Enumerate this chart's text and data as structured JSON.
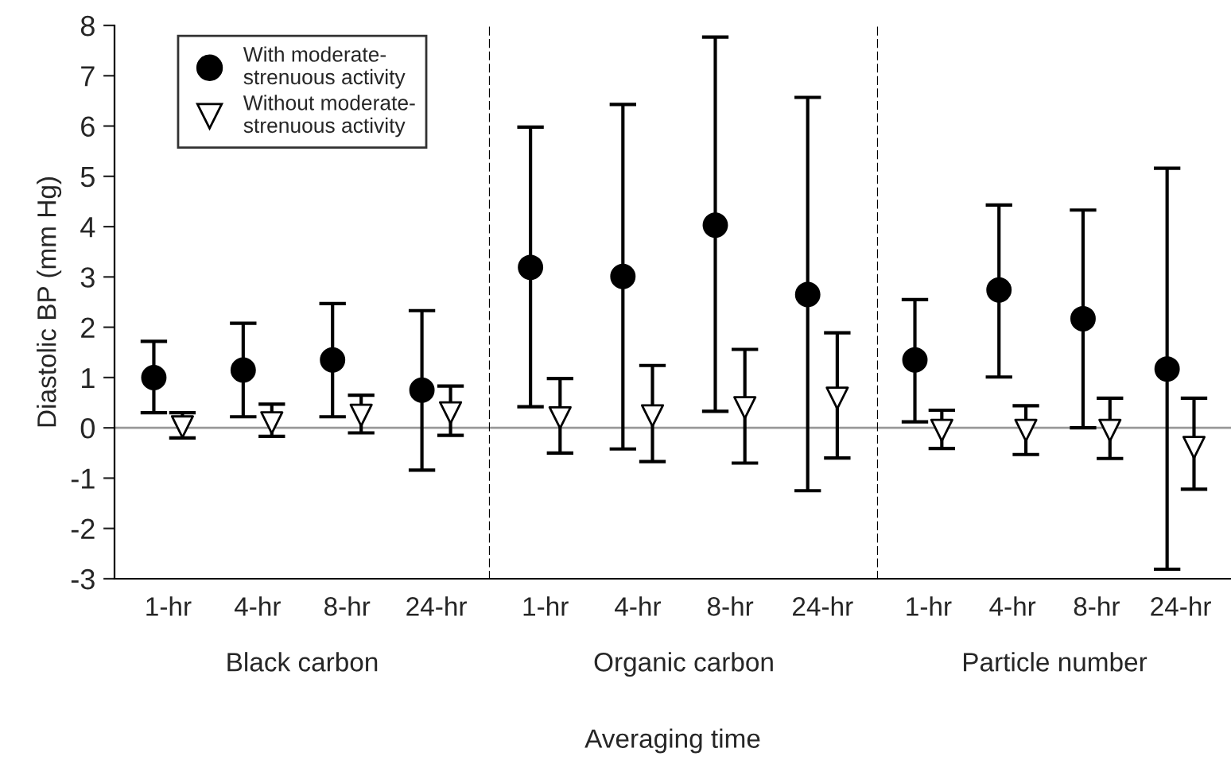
{
  "chart_data": [
    {
      "type": "scatter",
      "categories": [
        "1-hr",
        "4-hr",
        "8-hr",
        "24-hr"
      ],
      "xlabel": "Black carbon",
      "ylabel": "Diastolic BP (mm Hg)",
      "ylim": [
        -3,
        8
      ],
      "yticks": [
        -3,
        -2,
        -1,
        0,
        1,
        2,
        3,
        4,
        5,
        6,
        7,
        8
      ],
      "legend": "top",
      "annotations": [
        "Averaging time"
      ],
      "ref_lines": [
        {
          "axis": "y",
          "value": 0,
          "color": "#999999"
        }
      ],
      "series": [
        {
          "name": "With moderate-strenuous activity",
          "color": "#000000",
          "marker": "circle",
          "values": [
            1.0,
            1.15,
            1.35,
            0.75
          ],
          "errors": [
            [
              0.3,
              1.72
            ],
            [
              0.22,
              2.08
            ],
            [
              0.22,
              2.47
            ],
            [
              -0.84,
              2.33
            ]
          ]
        },
        {
          "name": "Without moderate-strenuous activity",
          "color": "#ffffff",
          "marker": "triangle",
          "values": [
            0.02,
            0.1,
            0.25,
            0.3
          ],
          "errors": [
            [
              -0.2,
              0.3
            ],
            [
              -0.17,
              0.47
            ],
            [
              -0.1,
              0.65
            ],
            [
              -0.15,
              0.83
            ]
          ]
        }
      ]
    },
    {
      "type": "scatter",
      "categories": [
        "1-hr",
        "4-hr",
        "8-hr",
        "24-hr"
      ],
      "xlabel": "Organic carbon",
      "ylim": [
        -3,
        8
      ],
      "tick_labels": "x",
      "ref_lines": [
        {
          "axis": "y",
          "value": 0,
          "color": "#999999"
        }
      ],
      "series": [
        {
          "color": "#000000",
          "marker": "circle",
          "values": [
            3.19,
            3.01,
            4.03,
            2.65
          ],
          "errors": [
            [
              0.42,
              5.98
            ],
            [
              -0.42,
              6.43
            ],
            [
              0.33,
              7.77
            ],
            [
              -1.25,
              6.57
            ]
          ]
        },
        {
          "color": "#ffffff",
          "marker": "triangle",
          "values": [
            0.2,
            0.24,
            0.4,
            0.59
          ],
          "errors": [
            [
              -0.5,
              0.98
            ],
            [
              -0.67,
              1.24
            ],
            [
              -0.7,
              1.56
            ],
            [
              -0.6,
              1.89
            ]
          ]
        }
      ]
    },
    {
      "type": "scatter",
      "categories": [
        "1-hr",
        "4-hr",
        "8-hr",
        "24-hr"
      ],
      "xlabel": "Particle number",
      "ylim": [
        -3,
        8
      ],
      "tick_labels": "x",
      "ref_lines": [
        {
          "axis": "y",
          "value": 0,
          "color": "#999999"
        }
      ],
      "series": [
        {
          "color": "#000000",
          "marker": "circle",
          "values": [
            1.35,
            2.74,
            2.17,
            1.17
          ],
          "errors": [
            [
              0.12,
              2.55
            ],
            [
              1.01,
              4.43
            ],
            [
              0.0,
              4.33
            ],
            [
              -2.81,
              5.16
            ]
          ]
        },
        {
          "color": "#ffffff",
          "marker": "triangle",
          "values": [
            -0.05,
            -0.05,
            -0.05,
            -0.39
          ],
          "errors": [
            [
              -0.41,
              0.35
            ],
            [
              -0.53,
              0.44
            ],
            [
              -0.61,
              0.59
            ],
            [
              -1.22,
              0.59
            ]
          ]
        }
      ]
    }
  ]
}
